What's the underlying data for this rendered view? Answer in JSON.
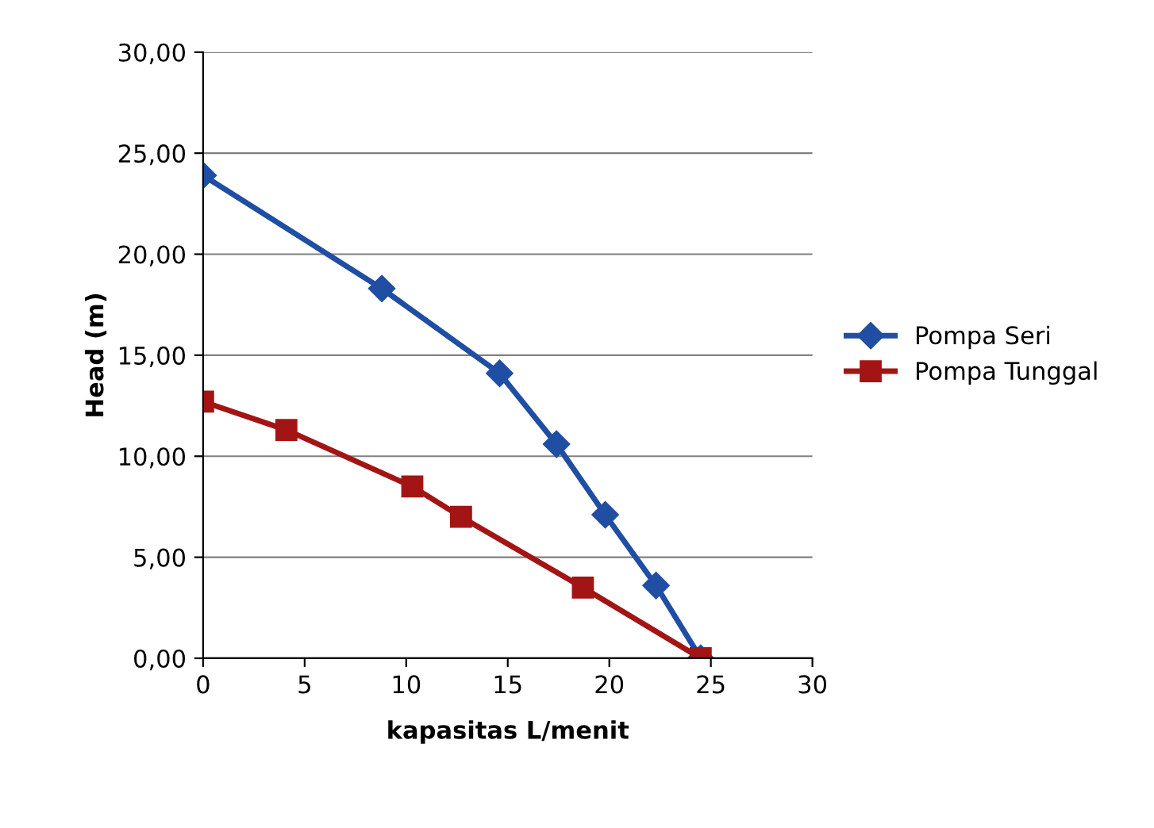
{
  "chart_data": {
    "type": "line",
    "xlabel": "kapasitas L/menit",
    "ylabel": "Head (m)",
    "series": [
      {
        "name": "Pompa Seri",
        "color": "#1f4ea3",
        "marker": "diamond",
        "x": [
          0,
          8.8,
          14.6,
          17.4,
          19.8,
          22.3,
          24.5
        ],
        "values": [
          23.9,
          18.3,
          14.1,
          10.6,
          7.1,
          3.6,
          0
        ]
      },
      {
        "name": "Pompa Tunggal",
        "color": "#a31515",
        "marker": "square",
        "x": [
          0,
          4.1,
          10.3,
          12.7,
          18.7,
          24.5
        ],
        "values": [
          12.7,
          11.3,
          8.5,
          7.0,
          3.5,
          0
        ]
      }
    ],
    "xlim": [
      0,
      30
    ],
    "xticks": [
      0,
      5,
      10,
      15,
      20,
      25,
      30
    ],
    "ylim": [
      0,
      30
    ],
    "yticks": [
      {
        "value": 0,
        "label": "0,00"
      },
      {
        "value": 5,
        "label": "5,00"
      },
      {
        "value": 10,
        "label": "10,00"
      },
      {
        "value": 15,
        "label": "15,00"
      },
      {
        "value": 20,
        "label": "20,00"
      },
      {
        "value": 25,
        "label": "25,00"
      },
      {
        "value": 30,
        "label": "30,00"
      }
    ],
    "grid": "y",
    "legend": "right",
    "line_style": "solid"
  }
}
